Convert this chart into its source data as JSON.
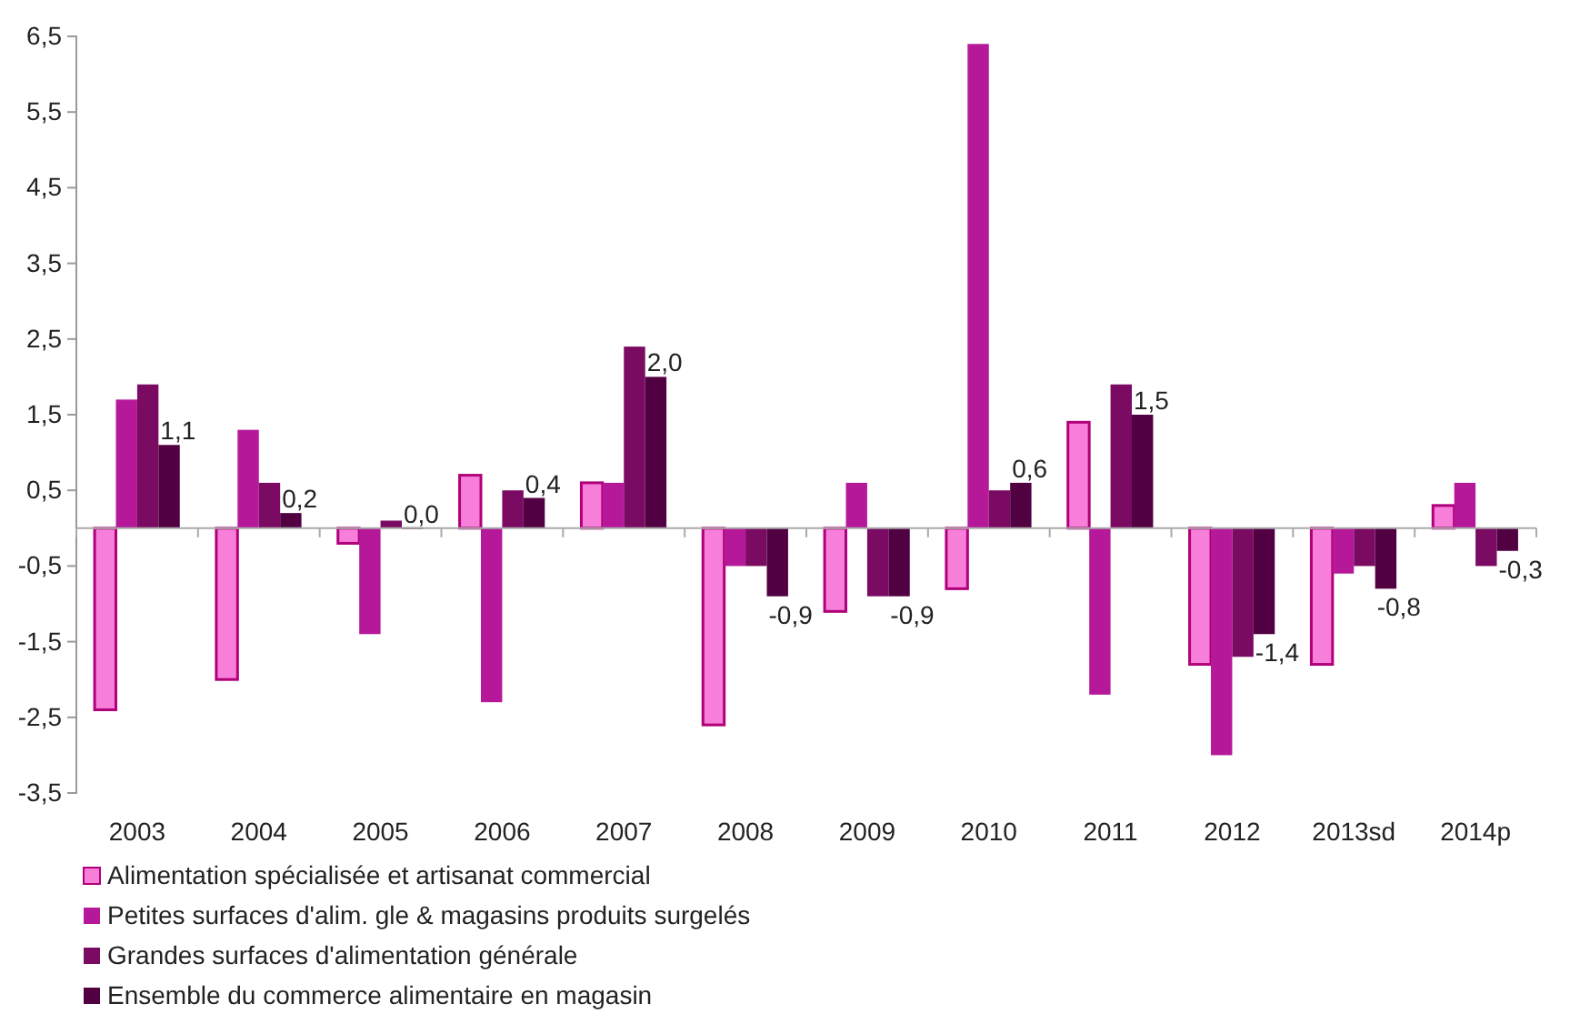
{
  "chart_data": {
    "type": "bar",
    "categories": [
      "2003",
      "2004",
      "2005",
      "2006",
      "2007",
      "2008",
      "2009",
      "2010",
      "2011",
      "2012",
      "2013sd",
      "2014p"
    ],
    "series": [
      {
        "name": "Alimentation spécialisée et artisanat commercial",
        "color": "#f77fd9",
        "values": [
          -2.4,
          -2.0,
          -0.2,
          0.7,
          0.6,
          -2.6,
          -1.1,
          -0.8,
          1.4,
          -1.8,
          -1.8,
          0.3
        ]
      },
      {
        "name": "Petites surfaces d'alim. gle & magasins produits surgelés",
        "color": "#b5199a",
        "values": [
          1.7,
          1.3,
          -1.4,
          -2.3,
          0.6,
          -0.5,
          0.6,
          6.4,
          -2.2,
          -3.0,
          -0.6,
          0.6
        ]
      },
      {
        "name": "Grandes surfaces d'alimentation générale",
        "color": "#7b0a62",
        "values": [
          1.9,
          0.6,
          0.1,
          0.5,
          2.4,
          -0.5,
          -0.9,
          0.5,
          1.9,
          -1.7,
          -0.5,
          -0.5
        ]
      },
      {
        "name": "Ensemble du commerce alimentaire en magasin",
        "color": "#510042",
        "values": [
          1.1,
          0.2,
          0.0,
          0.4,
          2.0,
          -0.9,
          -0.9,
          0.6,
          1.5,
          -1.4,
          -0.8,
          -0.3
        ],
        "value_labels": [
          "1,1",
          "0,2",
          "0,0",
          "0,4",
          "2,0",
          "-0,9",
          "-0,9",
          "0,6",
          "1,5",
          "-1,4",
          "-0,8",
          "-0,3"
        ]
      }
    ],
    "ylim": [
      -3.5,
      6.5
    ],
    "yticks": [
      {
        "value": -3.5,
        "label": "-3,5"
      },
      {
        "value": -2.5,
        "label": "-2,5"
      },
      {
        "value": -1.5,
        "label": "-1,5"
      },
      {
        "value": -0.5,
        "label": "-0,5"
      },
      {
        "value": 0.5,
        "label": "0,5"
      },
      {
        "value": 1.5,
        "label": "1,5"
      },
      {
        "value": 2.5,
        "label": "2,5"
      },
      {
        "value": 3.5,
        "label": "3,5"
      },
      {
        "value": 4.5,
        "label": "4,5"
      },
      {
        "value": 5.5,
        "label": "5,5"
      },
      {
        "value": 6.5,
        "label": "6,5"
      }
    ],
    "legend": "bottom"
  }
}
